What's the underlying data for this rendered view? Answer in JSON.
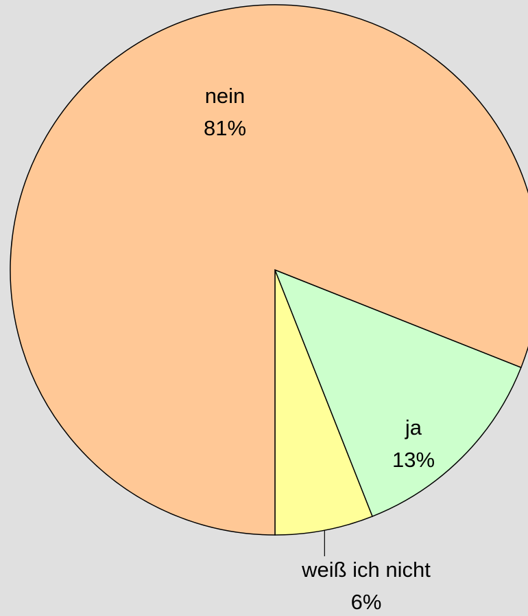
{
  "chart_data": {
    "type": "pie",
    "categories": [
      "weiß ich nicht",
      "ja",
      "nein"
    ],
    "values": [
      6,
      13,
      81
    ],
    "value_labels": [
      "6%",
      "13%",
      "81%"
    ],
    "colors": [
      "#ffff99",
      "#ccffcc",
      "#ffc896"
    ]
  }
}
